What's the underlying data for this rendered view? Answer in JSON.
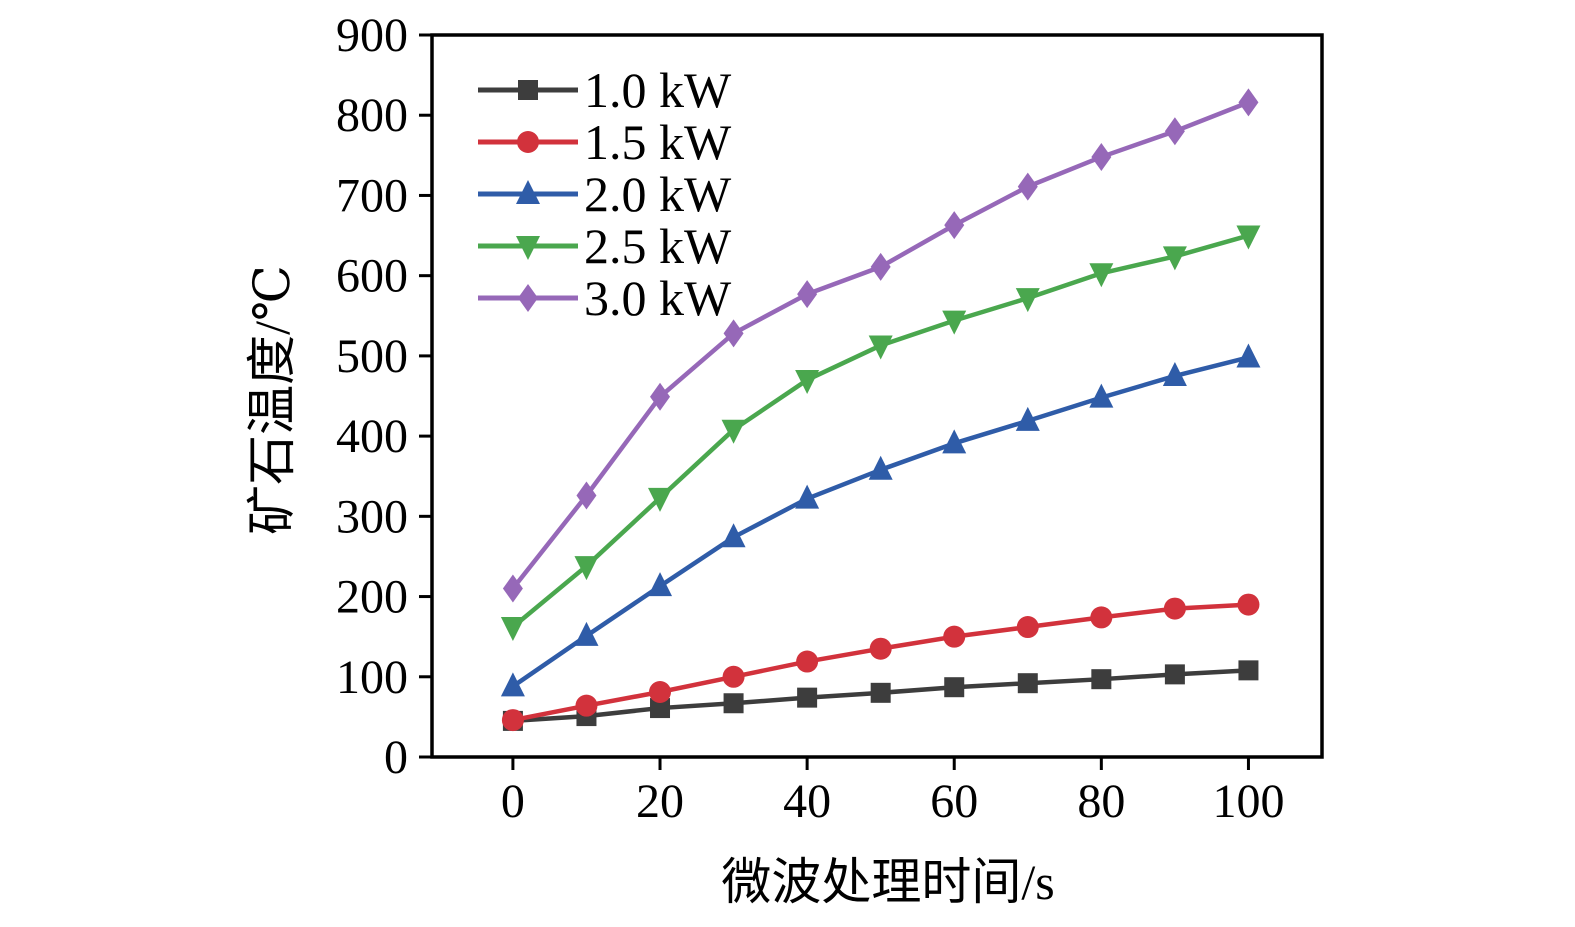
{
  "chart_data": {
    "type": "line",
    "title": "",
    "xlabel": "微波处理时间/s",
    "ylabel": "矿石温度/℃",
    "grid": false,
    "legend_position": "upper-left",
    "x": [
      0,
      10,
      20,
      30,
      40,
      50,
      60,
      70,
      80,
      90,
      100
    ],
    "xlim": [
      -11,
      110
    ],
    "ylim": [
      0,
      900
    ],
    "xticks": [
      0,
      20,
      40,
      60,
      80,
      100
    ],
    "yticks": [
      0,
      100,
      200,
      300,
      400,
      500,
      600,
      700,
      800,
      900
    ],
    "series": [
      {
        "name": "1.0 kW",
        "marker": "square",
        "color": "#3d3d3d",
        "values": [
          45,
          51,
          61,
          67,
          74,
          80,
          87,
          92,
          97,
          103,
          108
        ]
      },
      {
        "name": "1.5 kW",
        "marker": "circle",
        "color": "#d2323c",
        "values": [
          46,
          64,
          81,
          100,
          119,
          135,
          150,
          162,
          174,
          185,
          190
        ]
      },
      {
        "name": "2.0 kW",
        "marker": "triangle-up",
        "color": "#2f5ca8",
        "values": [
          88,
          151,
          213,
          274,
          322,
          358,
          391,
          419,
          448,
          475,
          498
        ]
      },
      {
        "name": "2.5 kW",
        "marker": "triangle-down",
        "color": "#4aa74e",
        "values": [
          162,
          238,
          323,
          408,
          470,
          513,
          544,
          572,
          603,
          624,
          650
        ]
      },
      {
        "name": "3.0 kW",
        "marker": "diamond",
        "color": "#9668b8",
        "values": [
          210,
          326,
          449,
          528,
          577,
          611,
          663,
          711,
          748,
          780,
          816
        ]
      }
    ]
  }
}
